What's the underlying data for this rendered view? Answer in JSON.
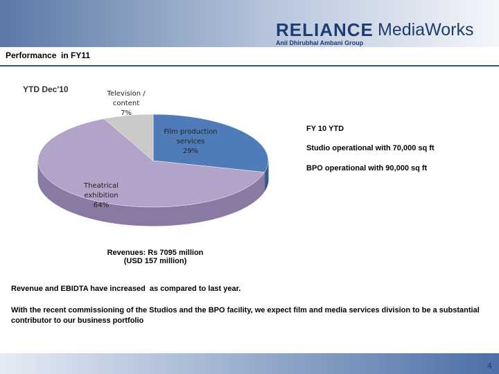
{
  "logo": {
    "brand": "RELIANCE",
    "product": "MediaWorks",
    "group": "Anil Dhirubhai Ambani Group"
  },
  "header": {
    "title": "Performance  in FY11"
  },
  "chart_data": {
    "type": "pie",
    "title": "YTD Dec'10",
    "categories": [
      "Film production services",
      "Theatrical exhibition",
      "Television / content"
    ],
    "values": [
      29,
      64,
      7
    ],
    "value_labels": [
      "29%",
      "64%",
      "7%"
    ],
    "colors": [
      "#4f7bb9",
      "#b2a3c8",
      "#c9c9c9"
    ],
    "side_colors": [
      "#36598c",
      "#8a7aa3",
      "#9a9a9a"
    ],
    "caption": [
      "Revenues: Rs 7095 million",
      "(USD 157 million)"
    ]
  },
  "notes": [
    "FY 10 YTD",
    "Studio operational with 70,000 sq ft",
    "BPO operational with 90,000 sq ft"
  ],
  "body": [
    "Revenue and EBIDTA have increased  as compared to last year.",
    "With the recent commissioning of the Studios and the BPO facility, we expect film and media services division to be a substantial contributor to our business portfolio"
  ],
  "footer": {
    "page": "4"
  }
}
